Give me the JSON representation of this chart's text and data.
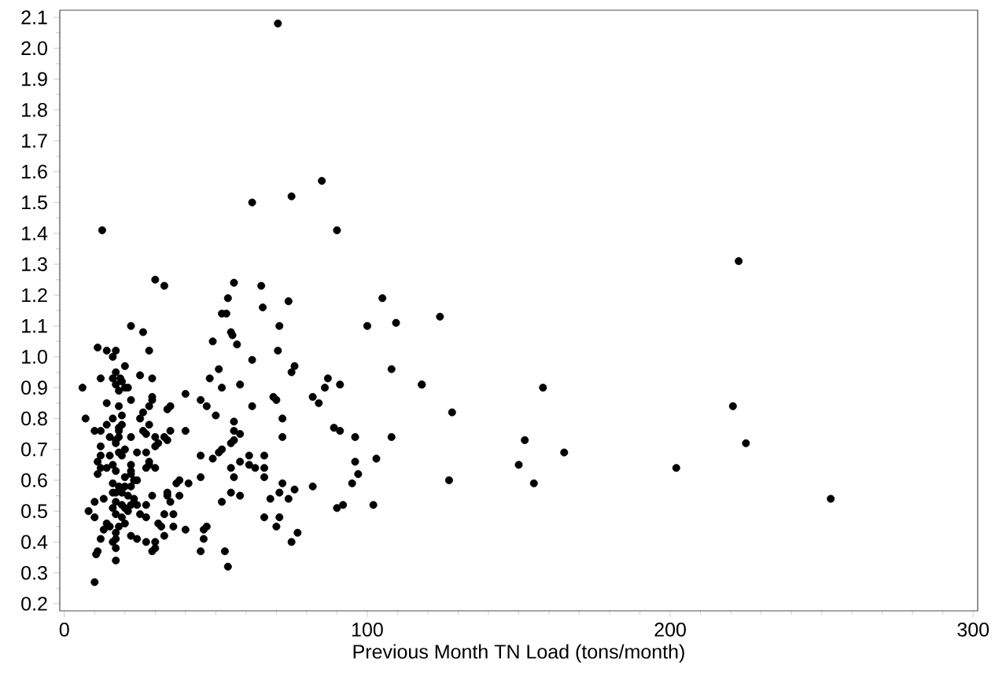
{
  "chart_data": {
    "type": "scatter",
    "xlabel": "Previous Month TN Load (tons/month)",
    "xlim": [
      -1.5,
      301.5
    ],
    "ylim": [
      0.177,
      2.123
    ],
    "xticks": [
      0,
      100,
      200,
      300
    ],
    "yticks": [
      0.2,
      0.3,
      0.4,
      0.5,
      0.6,
      0.7,
      0.8,
      0.9,
      {
        "value": 1,
        "label": "1.0"
      },
      1.1,
      1.2,
      1.3,
      1.4,
      1.5,
      1.6,
      1.7,
      1.8,
      1.9,
      {
        "value": 2,
        "label": "2.0"
      },
      2.1
    ],
    "marker": "circle",
    "grid": false,
    "series": [
      {
        "color": "#000000",
        "x": [
          70.5,
          85,
          75,
          62,
          90,
          12.5,
          30,
          33,
          56,
          65,
          74,
          54,
          105,
          65.5,
          52,
          53.5,
          22,
          71,
          100,
          26,
          55,
          55.5,
          49,
          57,
          11,
          14,
          17,
          28,
          70.5,
          16,
          62,
          76,
          20,
          108,
          51,
          75,
          17,
          25,
          16,
          12,
          29,
          18.5,
          48,
          87,
          19,
          17,
          58,
          91,
          118,
          6,
          20,
          21,
          52,
          86,
          158,
          18,
          40,
          29,
          69,
          82,
          22,
          29,
          70,
          45,
          84,
          14,
          18,
          28,
          47,
          62,
          35,
          34,
          26,
          128,
          19,
          50,
          7,
          16,
          25,
          72,
          56,
          19,
          14,
          28,
          89,
          18,
          10,
          12,
          18,
          26,
          35,
          56,
          40,
          58,
          91,
          27,
          15,
          33,
          30,
          18,
          22,
          72,
          96,
          108,
          17,
          34,
          31,
          30,
          55,
          12,
          17,
          56,
          20,
          18,
          24,
          52,
          51,
          19,
          12,
          15,
          45,
          61,
          66,
          49,
          27,
          103,
          11,
          28,
          58,
          96,
          16,
          22,
          28,
          14,
          12,
          30,
          55,
          63,
          66,
          61,
          17,
          22,
          27,
          11,
          22,
          38,
          41,
          45,
          56,
          66,
          97,
          20,
          23,
          24,
          16,
          18,
          20,
          37,
          72,
          82,
          95,
          22,
          16,
          19,
          13,
          17,
          21,
          23,
          29,
          34,
          34,
          38,
          55,
          58,
          71,
          76,
          68,
          74,
          10,
          17,
          19,
          22,
          24,
          27,
          35,
          52,
          92,
          102,
          16,
          20,
          21,
          8,
          90,
          17,
          25,
          33,
          36,
          19,
          27,
          10,
          66,
          71,
          14,
          20,
          31,
          32,
          15,
          18,
          36,
          47,
          70,
          40,
          13,
          46,
          77,
          17,
          22,
          24,
          33,
          17,
          12,
          27,
          30,
          46,
          75,
          16,
          30,
          17,
          29,
          45,
          53,
          11,
          10.5,
          17,
          54,
          10,
          222.6,
          124,
          109.5,
          118,
          220.7,
          152,
          225,
          165,
          150,
          202,
          127,
          155,
          253
        ],
        "values": [
          2.08,
          1.57,
          1.52,
          1.5,
          1.41,
          1.41,
          1.25,
          1.23,
          1.24,
          1.23,
          1.18,
          1.19,
          1.19,
          1.16,
          1.14,
          1.14,
          1.1,
          1.1,
          1.1,
          1.08,
          1.08,
          1.07,
          1.05,
          1.04,
          1.03,
          1.02,
          1.02,
          1.02,
          1.02,
          1.0,
          0.99,
          0.97,
          0.97,
          0.96,
          0.96,
          0.95,
          0.95,
          0.94,
          0.93,
          0.93,
          0.93,
          0.93,
          0.93,
          0.93,
          0.92,
          0.91,
          0.91,
          0.91,
          0.91,
          0.9,
          0.9,
          0.9,
          0.9,
          0.9,
          0.9,
          0.89,
          0.88,
          0.87,
          0.87,
          0.87,
          0.86,
          0.86,
          0.86,
          0.86,
          0.85,
          0.85,
          0.84,
          0.84,
          0.84,
          0.84,
          0.84,
          0.83,
          0.82,
          0.82,
          0.81,
          0.81,
          0.8,
          0.8,
          0.8,
          0.8,
          0.79,
          0.78,
          0.78,
          0.78,
          0.77,
          0.77,
          0.76,
          0.76,
          0.76,
          0.76,
          0.76,
          0.76,
          0.76,
          0.75,
          0.76,
          0.75,
          0.74,
          0.74,
          0.74,
          0.74,
          0.74,
          0.74,
          0.74,
          0.74,
          0.73,
          0.73,
          0.72,
          0.71,
          0.72,
          0.71,
          0.72,
          0.73,
          0.7,
          0.69,
          0.69,
          0.7,
          0.69,
          0.68,
          0.68,
          0.68,
          0.68,
          0.68,
          0.68,
          0.67,
          0.69,
          0.67,
          0.66,
          0.66,
          0.66,
          0.66,
          0.65,
          0.65,
          0.65,
          0.64,
          0.64,
          0.64,
          0.64,
          0.64,
          0.64,
          0.65,
          0.63,
          0.63,
          0.64,
          0.62,
          0.62,
          0.6,
          0.59,
          0.61,
          0.61,
          0.61,
          0.62,
          0.61,
          0.6,
          0.6,
          0.59,
          0.58,
          0.58,
          0.59,
          0.59,
          0.58,
          0.59,
          0.58,
          0.56,
          0.56,
          0.54,
          0.56,
          0.55,
          0.54,
          0.55,
          0.55,
          0.56,
          0.55,
          0.56,
          0.55,
          0.56,
          0.57,
          0.54,
          0.54,
          0.53,
          0.53,
          0.52,
          0.52,
          0.52,
          0.52,
          0.53,
          0.53,
          0.52,
          0.52,
          0.51,
          0.51,
          0.5,
          0.5,
          0.51,
          0.49,
          0.49,
          0.49,
          0.49,
          0.48,
          0.48,
          0.48,
          0.48,
          0.48,
          0.46,
          0.46,
          0.46,
          0.45,
          0.45,
          0.45,
          0.45,
          0.45,
          0.45,
          0.44,
          0.44,
          0.44,
          0.43,
          0.43,
          0.42,
          0.41,
          0.42,
          0.41,
          0.41,
          0.4,
          0.4,
          0.41,
          0.4,
          0.4,
          0.38,
          0.38,
          0.37,
          0.37,
          0.37,
          0.37,
          0.36,
          0.34,
          0.32,
          0.27,
          1.31,
          1.13,
          1.11,
          0.91,
          0.84,
          0.73,
          0.72,
          0.69,
          0.65,
          0.64,
          0.6,
          0.59,
          0.54
        ]
      }
    ]
  }
}
